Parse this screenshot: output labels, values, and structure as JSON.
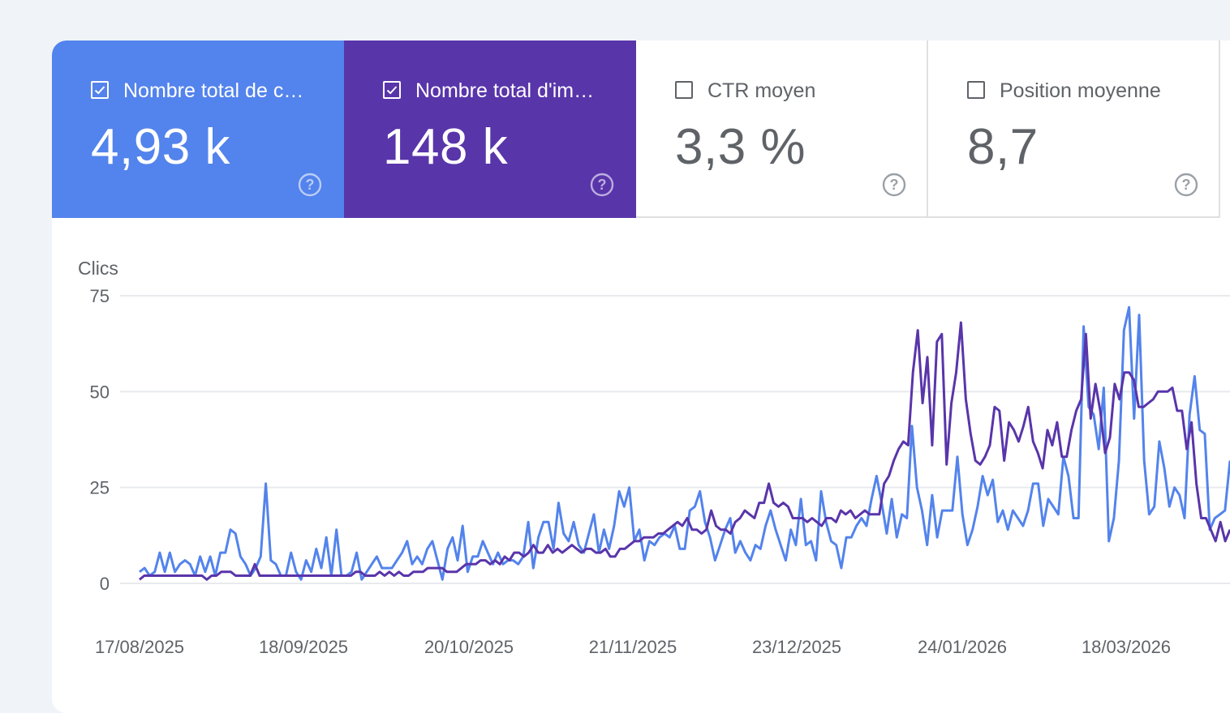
{
  "metrics": [
    {
      "label": "Nombre total de c…",
      "value": "4,93 k",
      "checked": true,
      "color": "#5383ec"
    },
    {
      "label": "Nombre total d'im…",
      "value": "148 k",
      "checked": true,
      "color": "#5935aa"
    },
    {
      "label": "CTR moyen",
      "value": "3,3 %",
      "checked": false
    },
    {
      "label": "Position moyenne",
      "value": "8,7",
      "checked": false
    }
  ],
  "icons": {
    "help": "help-circle-icon",
    "checkbox": "checkbox-icon"
  },
  "chart_data": {
    "type": "line",
    "ylabel": "Clics",
    "ylim": [
      0,
      75
    ],
    "yticks": [
      "75",
      "50",
      "25",
      "0"
    ],
    "xticks": [
      "17/08/2025",
      "18/09/2025",
      "20/10/2025",
      "21/11/2025",
      "23/12/2025",
      "24/01/2026",
      "18/03/2026"
    ],
    "grid": true,
    "series": [
      {
        "color": "#5383ec",
        "values": [
          3,
          4,
          2,
          3,
          8,
          3,
          8,
          3,
          5,
          6,
          5,
          2,
          7,
          3,
          7,
          2,
          8,
          8,
          14,
          13,
          7,
          5,
          2,
          4,
          7,
          26,
          6,
          5,
          2,
          2,
          8,
          3,
          1,
          6,
          3,
          9,
          4,
          12,
          2,
          14,
          2,
          2,
          3,
          8,
          1,
          3,
          5,
          7,
          4,
          4,
          4,
          6,
          8,
          11,
          5,
          7,
          5,
          9,
          11,
          6,
          1,
          9,
          12,
          6,
          15,
          3,
          7,
          7,
          11,
          8,
          5,
          8,
          5,
          6,
          6,
          5,
          7,
          16,
          4,
          12,
          16,
          16,
          9,
          21,
          13,
          11,
          16,
          10,
          8,
          13,
          18,
          8,
          14,
          9,
          15,
          24,
          20,
          25,
          11,
          14,
          6,
          11,
          10,
          12,
          13,
          12,
          15,
          9,
          9,
          19,
          20,
          24,
          16,
          12,
          6,
          10,
          14,
          17,
          8,
          11,
          8,
          6,
          10,
          9,
          15,
          19,
          14,
          10,
          6,
          14,
          10,
          22,
          10,
          11,
          6,
          24,
          16,
          11,
          10,
          4,
          12,
          12,
          15,
          17,
          15,
          22,
          28,
          21,
          13,
          22,
          12,
          18,
          17,
          41,
          25,
          19,
          10,
          23,
          12,
          19,
          19,
          19,
          33,
          18,
          10,
          14,
          20,
          28,
          23,
          27,
          16,
          19,
          14,
          19,
          17,
          15,
          19,
          26,
          26,
          15,
          22,
          20,
          18,
          33,
          28,
          17,
          17,
          67,
          46,
          44,
          35,
          51,
          11,
          17,
          32,
          66,
          72,
          43,
          70,
          32,
          18,
          20,
          37,
          30,
          20,
          25,
          23,
          17,
          44,
          54,
          40,
          39,
          14,
          17,
          18,
          19,
          32
        ]
      },
      {
        "color": "#5935aa",
        "values": [
          1,
          2,
          2,
          2,
          2,
          2,
          2,
          2,
          2,
          2,
          2,
          2,
          2,
          2,
          1,
          2,
          2,
          3,
          3,
          3,
          2,
          2,
          2,
          2,
          5,
          2,
          2,
          2,
          2,
          2,
          2,
          2,
          2,
          2,
          2,
          2,
          2,
          2,
          2,
          2,
          2,
          2,
          2,
          2,
          2,
          3,
          3,
          2,
          2,
          2,
          3,
          2,
          3,
          2,
          3,
          2,
          2,
          3,
          3,
          3,
          4,
          4,
          4,
          4,
          3,
          3,
          3,
          4,
          5,
          5,
          5,
          6,
          6,
          5,
          6,
          5,
          7,
          6,
          8,
          8,
          7,
          8,
          10,
          8,
          8,
          10,
          8,
          9,
          8,
          9,
          10,
          9,
          8,
          9,
          9,
          8,
          8,
          9,
          7,
          7,
          9,
          9,
          10,
          11,
          11,
          12,
          12,
          12,
          13,
          13,
          14,
          15,
          16,
          15,
          17,
          14,
          14,
          13,
          14,
          19,
          15,
          14,
          14,
          13,
          16,
          17,
          19,
          18,
          17,
          21,
          21,
          26,
          21,
          20,
          21,
          20,
          17,
          17,
          17,
          16,
          17,
          16,
          15,
          17,
          17,
          16,
          19,
          18,
          19,
          17,
          18,
          19,
          18,
          18,
          18,
          26,
          28,
          32,
          35,
          37,
          36,
          55,
          66,
          47,
          59,
          36,
          63,
          65,
          31,
          47,
          55,
          68,
          48,
          39,
          32,
          31,
          33,
          36,
          46,
          45,
          32,
          42,
          40,
          37,
          41,
          46,
          37,
          34,
          30,
          40,
          36,
          42,
          33,
          33,
          40,
          45,
          48,
          65,
          43,
          52,
          45,
          34,
          38,
          52,
          48,
          55,
          55,
          53,
          46,
          46,
          47,
          48,
          50,
          50,
          50,
          51,
          45,
          45,
          35,
          42,
          26,
          17,
          17,
          14,
          11,
          16,
          11,
          14
        ]
      }
    ]
  }
}
